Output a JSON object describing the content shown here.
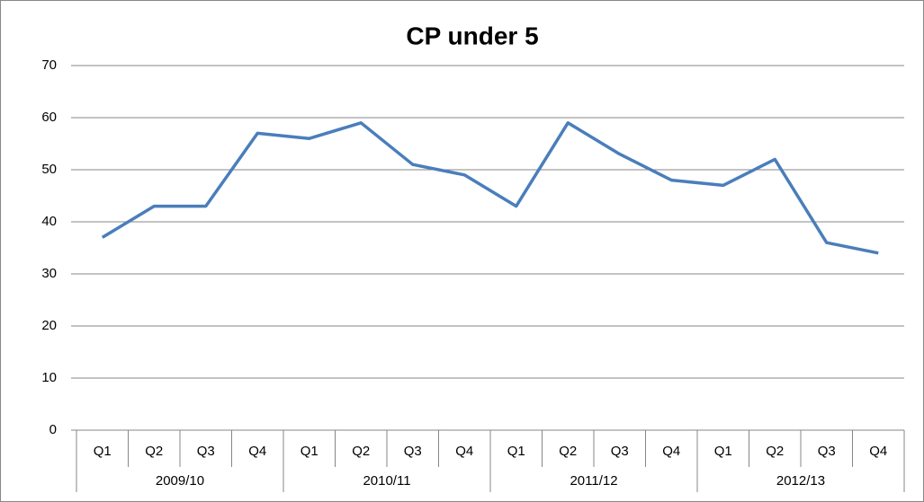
{
  "chart_data": {
    "type": "line",
    "title": "CP under 5",
    "categories": [
      "Q1",
      "Q2",
      "Q3",
      "Q4",
      "Q1",
      "Q2",
      "Q3",
      "Q4",
      "Q1",
      "Q2",
      "Q3",
      "Q4",
      "Q1",
      "Q2",
      "Q3",
      "Q4"
    ],
    "groups": [
      "2009/10",
      "2010/11",
      "2011/12",
      "2012/13"
    ],
    "values": [
      37,
      43,
      43,
      57,
      56,
      59,
      51,
      49,
      43,
      59,
      53,
      48,
      47,
      52,
      36,
      34
    ],
    "color": "#4a7ebb",
    "ylim": [
      0,
      70
    ],
    "yticks": [
      0,
      10,
      20,
      30,
      40,
      50,
      60,
      70
    ],
    "grid": true
  }
}
